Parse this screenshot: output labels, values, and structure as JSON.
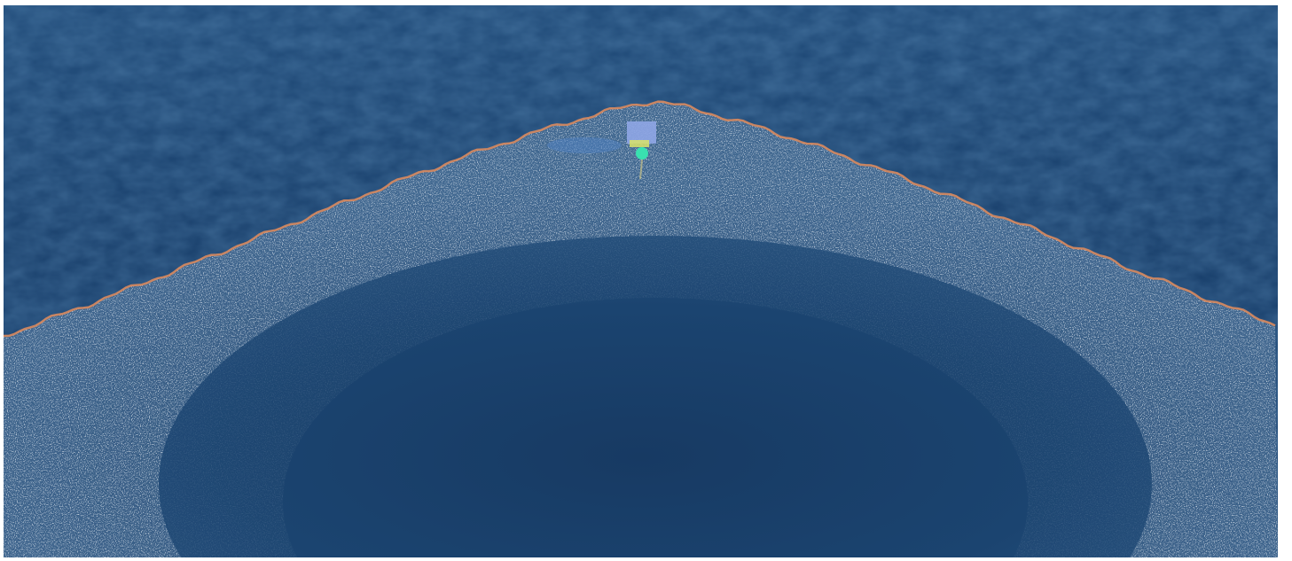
{
  "scene": {
    "description_free": true,
    "colors": {
      "frame_background": "#ffffff",
      "sea_deep": "#163a63",
      "sea_mid": "#1d4877",
      "sea_light": "#2b5b8e",
      "debris_light": "#a9bccd",
      "debris_mid": "#6f8aa6",
      "barrier_edge": "#d98a5e",
      "vessel_panel": "#8fa6e6",
      "vessel_hull": "#d9e36a",
      "vessel_marker": "#39e0b0",
      "wake": "#4f7fc0"
    },
    "icons": {
      "vessel": "vessel-icon"
    }
  }
}
